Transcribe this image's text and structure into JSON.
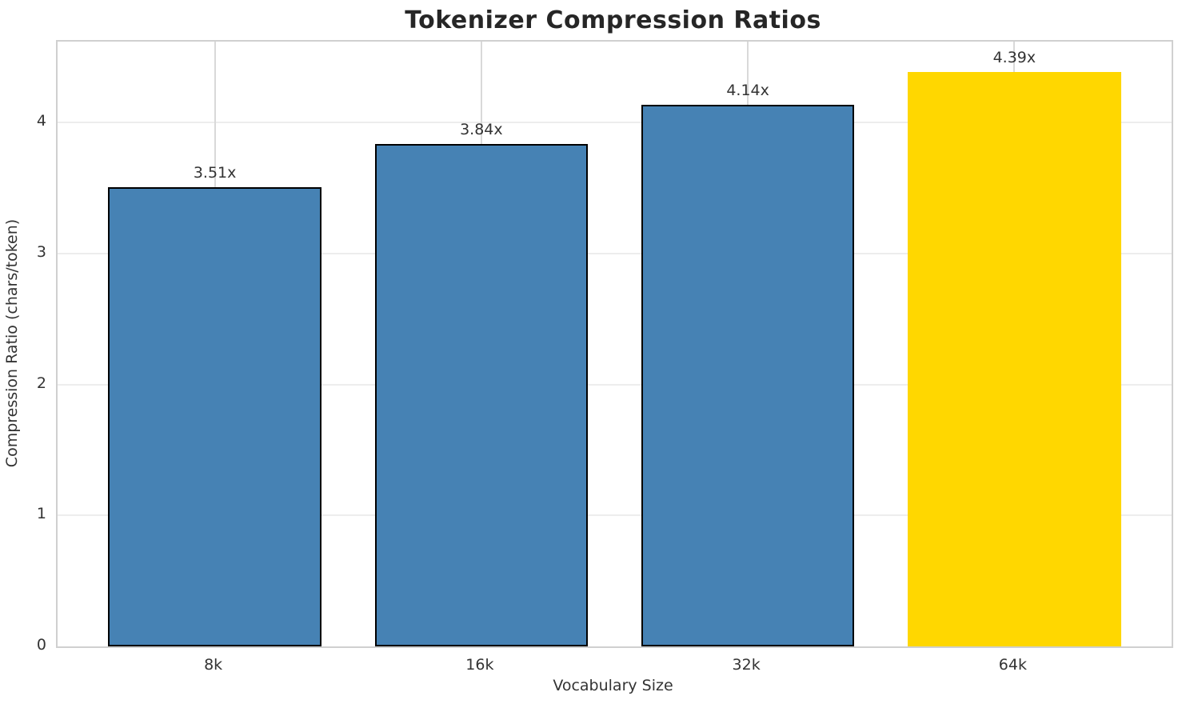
{
  "chart_data": {
    "type": "bar",
    "title": "Tokenizer Compression Ratios",
    "xlabel": "Vocabulary Size",
    "ylabel": "Compression Ratio (chars/token)",
    "categories": [
      "8k",
      "16k",
      "32k",
      "64k"
    ],
    "values": [
      3.51,
      3.84,
      4.14,
      4.39
    ],
    "bar_labels": [
      "3.51x",
      "3.84x",
      "4.14x",
      "4.39x"
    ],
    "bar_colors": [
      "#4682B4",
      "#4682B4",
      "#4682B4",
      "#FFD700"
    ],
    "bar_edge_colors": [
      "#000000",
      "#000000",
      "#000000",
      "none"
    ],
    "highlighted_category": "64k",
    "ylim": [
      0,
      4.62
    ],
    "yticks": [
      0,
      1,
      2,
      3,
      4
    ],
    "bar_width_fraction": 0.8,
    "grid": true,
    "legend": "none",
    "colors": {
      "bar_default": "#4682B4",
      "bar_highlight": "#FFD700",
      "bar_edge": "#000000",
      "frame": "#d0d0d0",
      "hgrid": "#ededed",
      "vgrid": "#d9d9d9",
      "title_text": "#262626",
      "tick_text": "#333333"
    }
  }
}
